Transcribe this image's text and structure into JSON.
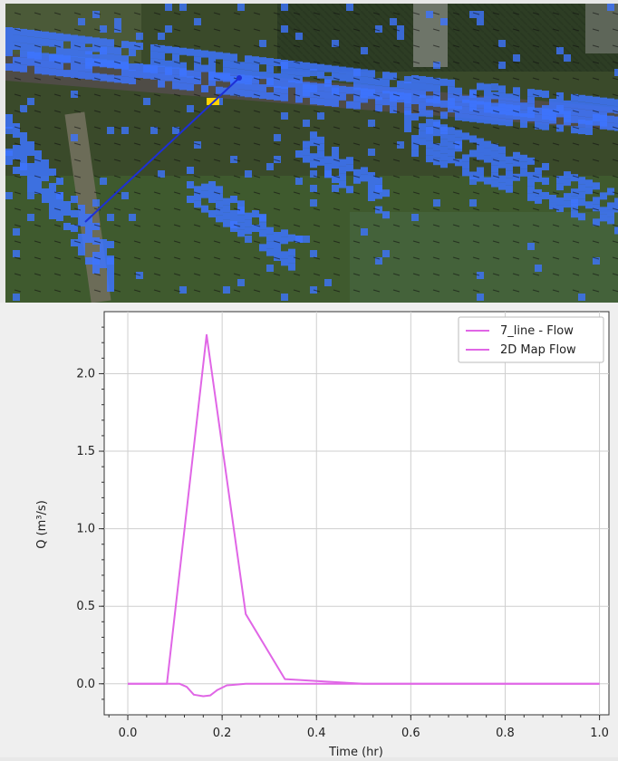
{
  "map_view": {
    "background": "aerial-imagery",
    "overlay_color": "#3d74ff",
    "peak_color": "#ffd400",
    "section_line_color": "#1d2fd6"
  },
  "chart_data": {
    "type": "line",
    "xlabel": "Time (hr)",
    "ylabel": "Q (m³/s)",
    "xlim": [
      -0.05,
      1.02
    ],
    "ylim": [
      -0.2,
      2.4
    ],
    "xticks": [
      0.0,
      0.2,
      0.4,
      0.6,
      0.8,
      1.0
    ],
    "xtick_labels": [
      "0.0",
      "0.2",
      "0.4",
      "0.6",
      "0.8",
      "1.0"
    ],
    "yticks": [
      0.0,
      0.5,
      1.0,
      1.5,
      2.0
    ],
    "ytick_labels": [
      "0.0",
      "0.5",
      "1.0",
      "1.5",
      "2.0"
    ],
    "grid": true,
    "legend_position": "top-right",
    "series": [
      {
        "name": "7_line - Flow",
        "color": "#e066e6",
        "x": [
          0.0,
          0.083,
          0.167,
          0.25,
          0.333,
          0.417,
          0.5,
          0.6,
          0.8,
          1.0
        ],
        "y": [
          0.0,
          0.0,
          2.25,
          0.45,
          0.03,
          0.015,
          0.0,
          0.0,
          0.0,
          0.0
        ]
      },
      {
        "name": "2D Map Flow",
        "color": "#e066e6",
        "x": [
          0.0,
          0.11,
          0.125,
          0.14,
          0.16,
          0.175,
          0.19,
          0.21,
          0.25,
          0.35,
          0.5,
          1.0
        ],
        "y": [
          0.0,
          0.0,
          -0.02,
          -0.07,
          -0.08,
          -0.075,
          -0.04,
          -0.01,
          0.0,
          0.0,
          0.0,
          0.0
        ]
      }
    ]
  }
}
